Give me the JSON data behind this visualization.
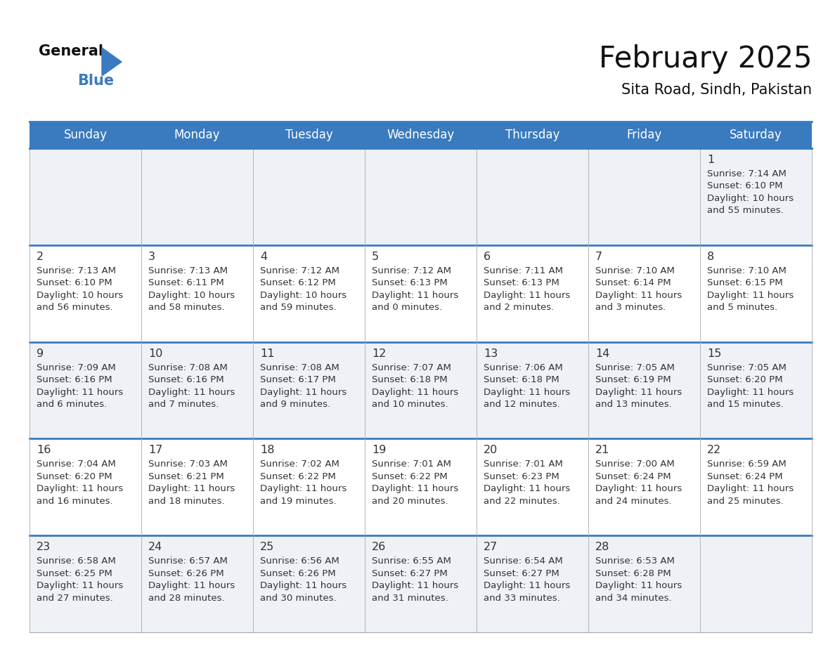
{
  "title": "February 2025",
  "subtitle": "Sita Road, Sindh, Pakistan",
  "header_color": "#3a7bbf",
  "header_text_color": "#ffffff",
  "cell_bg_even": "#eef1f5",
  "cell_bg_odd": "#ffffff",
  "border_color": "#3a7bbf",
  "thin_border_color": "#aaaaaa",
  "day_names": [
    "Sunday",
    "Monday",
    "Tuesday",
    "Wednesday",
    "Thursday",
    "Friday",
    "Saturday"
  ],
  "days": [
    {
      "date": 1,
      "col": 6,
      "row": 0,
      "sunrise": "7:14 AM",
      "sunset": "6:10 PM",
      "daylight_h": "10 hours",
      "daylight_m": "and 55 minutes."
    },
    {
      "date": 2,
      "col": 0,
      "row": 1,
      "sunrise": "7:13 AM",
      "sunset": "6:10 PM",
      "daylight_h": "10 hours",
      "daylight_m": "and 56 minutes."
    },
    {
      "date": 3,
      "col": 1,
      "row": 1,
      "sunrise": "7:13 AM",
      "sunset": "6:11 PM",
      "daylight_h": "10 hours",
      "daylight_m": "and 58 minutes."
    },
    {
      "date": 4,
      "col": 2,
      "row": 1,
      "sunrise": "7:12 AM",
      "sunset": "6:12 PM",
      "daylight_h": "10 hours",
      "daylight_m": "and 59 minutes."
    },
    {
      "date": 5,
      "col": 3,
      "row": 1,
      "sunrise": "7:12 AM",
      "sunset": "6:13 PM",
      "daylight_h": "11 hours",
      "daylight_m": "and 0 minutes."
    },
    {
      "date": 6,
      "col": 4,
      "row": 1,
      "sunrise": "7:11 AM",
      "sunset": "6:13 PM",
      "daylight_h": "11 hours",
      "daylight_m": "and 2 minutes."
    },
    {
      "date": 7,
      "col": 5,
      "row": 1,
      "sunrise": "7:10 AM",
      "sunset": "6:14 PM",
      "daylight_h": "11 hours",
      "daylight_m": "and 3 minutes."
    },
    {
      "date": 8,
      "col": 6,
      "row": 1,
      "sunrise": "7:10 AM",
      "sunset": "6:15 PM",
      "daylight_h": "11 hours",
      "daylight_m": "and 5 minutes."
    },
    {
      "date": 9,
      "col": 0,
      "row": 2,
      "sunrise": "7:09 AM",
      "sunset": "6:16 PM",
      "daylight_h": "11 hours",
      "daylight_m": "and 6 minutes."
    },
    {
      "date": 10,
      "col": 1,
      "row": 2,
      "sunrise": "7:08 AM",
      "sunset": "6:16 PM",
      "daylight_h": "11 hours",
      "daylight_m": "and 7 minutes."
    },
    {
      "date": 11,
      "col": 2,
      "row": 2,
      "sunrise": "7:08 AM",
      "sunset": "6:17 PM",
      "daylight_h": "11 hours",
      "daylight_m": "and 9 minutes."
    },
    {
      "date": 12,
      "col": 3,
      "row": 2,
      "sunrise": "7:07 AM",
      "sunset": "6:18 PM",
      "daylight_h": "11 hours",
      "daylight_m": "and 10 minutes."
    },
    {
      "date": 13,
      "col": 4,
      "row": 2,
      "sunrise": "7:06 AM",
      "sunset": "6:18 PM",
      "daylight_h": "11 hours",
      "daylight_m": "and 12 minutes."
    },
    {
      "date": 14,
      "col": 5,
      "row": 2,
      "sunrise": "7:05 AM",
      "sunset": "6:19 PM",
      "daylight_h": "11 hours",
      "daylight_m": "and 13 minutes."
    },
    {
      "date": 15,
      "col": 6,
      "row": 2,
      "sunrise": "7:05 AM",
      "sunset": "6:20 PM",
      "daylight_h": "11 hours",
      "daylight_m": "and 15 minutes."
    },
    {
      "date": 16,
      "col": 0,
      "row": 3,
      "sunrise": "7:04 AM",
      "sunset": "6:20 PM",
      "daylight_h": "11 hours",
      "daylight_m": "and 16 minutes."
    },
    {
      "date": 17,
      "col": 1,
      "row": 3,
      "sunrise": "7:03 AM",
      "sunset": "6:21 PM",
      "daylight_h": "11 hours",
      "daylight_m": "and 18 minutes."
    },
    {
      "date": 18,
      "col": 2,
      "row": 3,
      "sunrise": "7:02 AM",
      "sunset": "6:22 PM",
      "daylight_h": "11 hours",
      "daylight_m": "and 19 minutes."
    },
    {
      "date": 19,
      "col": 3,
      "row": 3,
      "sunrise": "7:01 AM",
      "sunset": "6:22 PM",
      "daylight_h": "11 hours",
      "daylight_m": "and 20 minutes."
    },
    {
      "date": 20,
      "col": 4,
      "row": 3,
      "sunrise": "7:01 AM",
      "sunset": "6:23 PM",
      "daylight_h": "11 hours",
      "daylight_m": "and 22 minutes."
    },
    {
      "date": 21,
      "col": 5,
      "row": 3,
      "sunrise": "7:00 AM",
      "sunset": "6:24 PM",
      "daylight_h": "11 hours",
      "daylight_m": "and 24 minutes."
    },
    {
      "date": 22,
      "col": 6,
      "row": 3,
      "sunrise": "6:59 AM",
      "sunset": "6:24 PM",
      "daylight_h": "11 hours",
      "daylight_m": "and 25 minutes."
    },
    {
      "date": 23,
      "col": 0,
      "row": 4,
      "sunrise": "6:58 AM",
      "sunset": "6:25 PM",
      "daylight_h": "11 hours",
      "daylight_m": "and 27 minutes."
    },
    {
      "date": 24,
      "col": 1,
      "row": 4,
      "sunrise": "6:57 AM",
      "sunset": "6:26 PM",
      "daylight_h": "11 hours",
      "daylight_m": "and 28 minutes."
    },
    {
      "date": 25,
      "col": 2,
      "row": 4,
      "sunrise": "6:56 AM",
      "sunset": "6:26 PM",
      "daylight_h": "11 hours",
      "daylight_m": "and 30 minutes."
    },
    {
      "date": 26,
      "col": 3,
      "row": 4,
      "sunrise": "6:55 AM",
      "sunset": "6:27 PM",
      "daylight_h": "11 hours",
      "daylight_m": "and 31 minutes."
    },
    {
      "date": 27,
      "col": 4,
      "row": 4,
      "sunrise": "6:54 AM",
      "sunset": "6:27 PM",
      "daylight_h": "11 hours",
      "daylight_m": "and 33 minutes."
    },
    {
      "date": 28,
      "col": 5,
      "row": 4,
      "sunrise": "6:53 AM",
      "sunset": "6:28 PM",
      "daylight_h": "11 hours",
      "daylight_m": "and 34 minutes."
    }
  ],
  "num_rows": 5
}
